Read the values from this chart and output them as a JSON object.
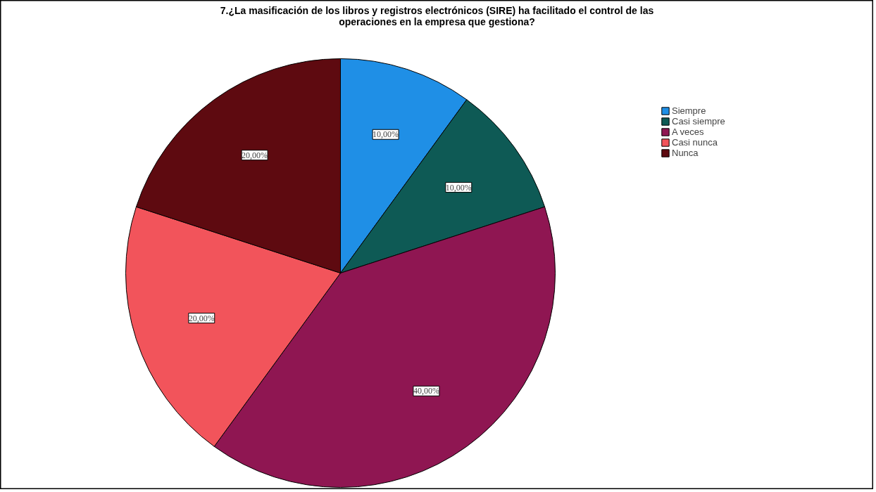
{
  "chart_data": {
    "type": "pie",
    "title": "7.¿La masificación de los libros y registros electrónicos (SIRE) ha facilitado el control de las operaciones en la empresa que gestiona?",
    "categories": [
      "Siempre",
      "Casi siempre",
      "A veces",
      "Casi nunca",
      "Nunca"
    ],
    "values": [
      10,
      10,
      40,
      20,
      20
    ],
    "colors": [
      "#1f8fe6",
      "#0e5a55",
      "#8f1652",
      "#f2545b",
      "#5e0a10"
    ],
    "value_labels": [
      "10,00%",
      "10,00%",
      "40,00%",
      "20,00%",
      "20,00%"
    ],
    "legend": "top right"
  }
}
